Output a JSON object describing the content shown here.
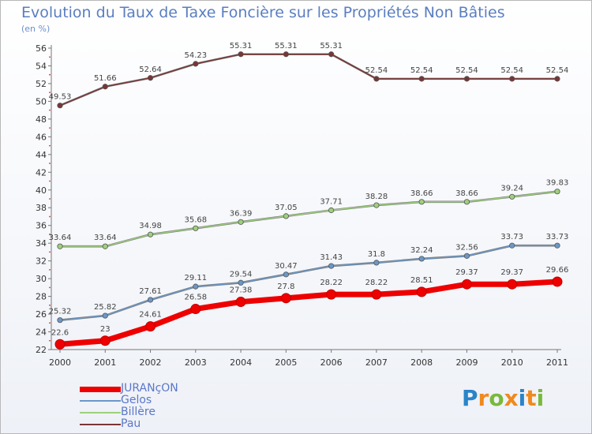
{
  "header": {
    "title": "Evolution du Taux de Taxe Foncière sur les Propriétés Non Bâties",
    "subtitle": "(en %)"
  },
  "brand": {
    "letters": [
      "P",
      "r",
      "o",
      "x",
      "i",
      "t",
      "i"
    ],
    "colors": [
      "#2a84c8",
      "#f08a1e",
      "#78b93a",
      "#f08a1e",
      "#2a84c8",
      "#f08a1e",
      "#78b93a"
    ]
  },
  "chart_data": {
    "type": "line",
    "title": "Evolution du Taux de Taxe Foncière sur les Propriétés Non Bâties",
    "ylabel": "(en %)",
    "x": [
      "2000",
      "2001",
      "2002",
      "2003",
      "2004",
      "2005",
      "2006",
      "2007",
      "2008",
      "2009",
      "2010",
      "2011"
    ],
    "ylim": [
      22,
      56
    ],
    "yticks": [
      22,
      24,
      26,
      28,
      30,
      32,
      34,
      36,
      38,
      40,
      42,
      44,
      46,
      48,
      50,
      52,
      54,
      56
    ],
    "grid": false,
    "legend": "bottom-left",
    "series": [
      {
        "name": "JURANçON",
        "color": "#ee0000",
        "values": [
          22.6,
          23,
          24.61,
          26.58,
          27.38,
          27.8,
          28.22,
          28.22,
          28.51,
          29.37,
          29.37,
          29.66
        ],
        "labels": [
          "22.6",
          "23",
          "24.61",
          "26.58",
          "27.38",
          "27.8",
          "28.22",
          "28.22",
          "28.51",
          "29.37",
          "29.37",
          "29.66"
        ]
      },
      {
        "name": "Gelos",
        "color": "#6a98c8",
        "values": [
          25.32,
          25.82,
          27.61,
          29.11,
          29.54,
          30.47,
          31.43,
          31.8,
          32.24,
          32.56,
          33.73,
          33.73
        ],
        "labels": [
          "25.32",
          "25.82",
          "27.61",
          "29.11",
          "29.54",
          "30.47",
          "31.43",
          "31.8",
          "32.24",
          "32.56",
          "33.73",
          "33.73"
        ]
      },
      {
        "name": "Billère",
        "color": "#9ed07c",
        "values": [
          33.64,
          33.64,
          34.98,
          35.68,
          36.39,
          37.05,
          37.71,
          38.28,
          38.66,
          38.66,
          39.24,
          39.83
        ],
        "labels": [
          "33.64",
          "33.64",
          "34.98",
          "35.68",
          "36.39",
          "37.05",
          "37.71",
          "38.28",
          "38.66",
          "38.66",
          "39.24",
          "39.83"
        ]
      },
      {
        "name": "Pau",
        "color": "#7a3535",
        "values": [
          49.53,
          51.66,
          52.64,
          54.23,
          55.31,
          55.31,
          55.31,
          52.54,
          52.54,
          52.54,
          52.54,
          52.54
        ],
        "labels": [
          "49.53",
          "51.66",
          "52.64",
          "54.23",
          "55.31",
          "55.31",
          "55.31",
          "52.54",
          "52.54",
          "52.54",
          "52.54",
          "52.54"
        ]
      }
    ]
  }
}
